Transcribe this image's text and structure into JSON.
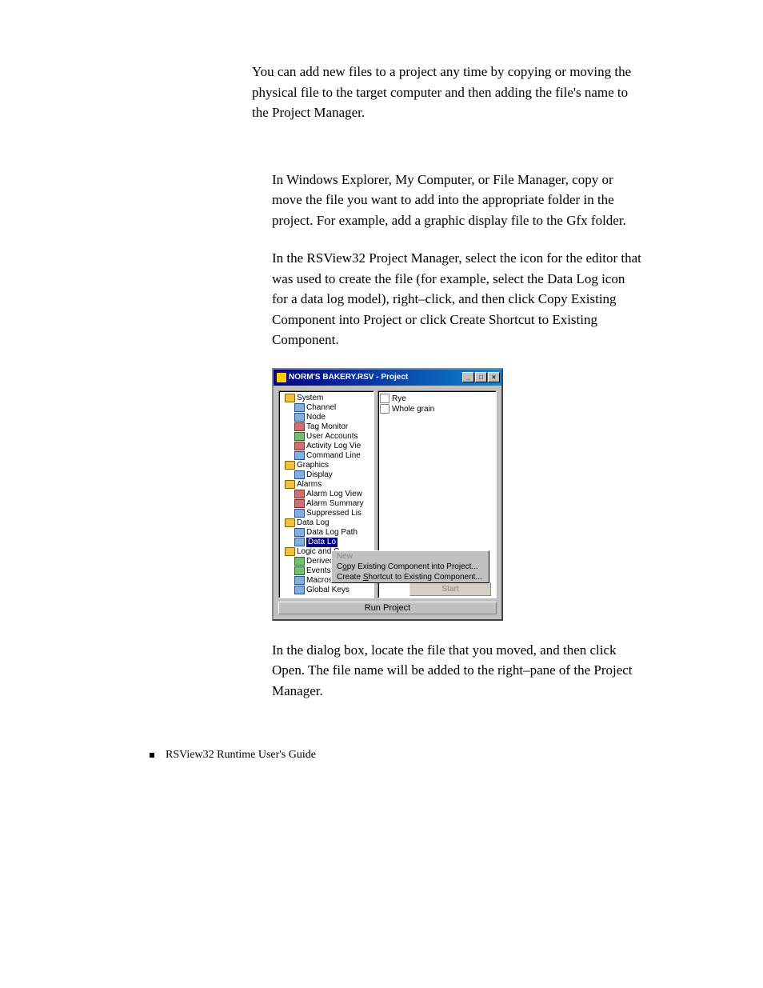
{
  "intro": "You can add new files to a project any time by copying or moving the physical file to the target computer and then adding the file's name to the Project Manager.",
  "step1": "In Windows Explorer, My Computer, or File Manager, copy or move the file you want to add into the appropriate folder in the project. For example, add a graphic display file to the Gfx folder.",
  "step2": "In the RSView32 Project Manager, select the icon for the editor that was used to create the file (for example, select the Data Log icon for a data log model), right–click, and then click Copy Existing Component into Project or click Create Shortcut to Existing Component.",
  "step3": "In the dialog box, locate the file that you moved, and then click Open. The file name will be added to the right–pane of the Project Manager.",
  "footer": "RSView32  Runtime User's Guide",
  "window": {
    "title": "NORM'S BAKERY.RSV - Project",
    "runproject": "Run Project",
    "start": "Start"
  },
  "tree": [
    {
      "level": 0,
      "icon": "folder",
      "label": "System"
    },
    {
      "level": 1,
      "icon": "item",
      "label": "Channel"
    },
    {
      "level": 1,
      "icon": "item",
      "label": "Node"
    },
    {
      "level": 1,
      "icon": "item2",
      "label": "Tag Monitor"
    },
    {
      "level": 1,
      "icon": "item3",
      "label": "User Accounts"
    },
    {
      "level": 1,
      "icon": "item2",
      "label": "Activity Log Vie"
    },
    {
      "level": 1,
      "icon": "item",
      "label": "Command Line"
    },
    {
      "level": 0,
      "icon": "folder",
      "label": "Graphics"
    },
    {
      "level": 1,
      "icon": "item",
      "label": "Display"
    },
    {
      "level": 0,
      "icon": "folder",
      "label": "Alarms"
    },
    {
      "level": 1,
      "icon": "item2",
      "label": "Alarm Log View"
    },
    {
      "level": 1,
      "icon": "item2",
      "label": "Alarm Summary"
    },
    {
      "level": 1,
      "icon": "item",
      "label": "Suppressed Lis"
    },
    {
      "level": 0,
      "icon": "folder",
      "label": "Data Log"
    },
    {
      "level": 1,
      "icon": "item",
      "label": "Data Log Path"
    },
    {
      "level": 1,
      "icon": "item",
      "label": "Data Lo",
      "selected": true
    },
    {
      "level": 0,
      "icon": "folder",
      "label": "Logic and C"
    },
    {
      "level": 1,
      "icon": "item3",
      "label": "Derivec"
    },
    {
      "level": 1,
      "icon": "item3",
      "label": "Events"
    },
    {
      "level": 1,
      "icon": "item",
      "label": "Macros"
    },
    {
      "level": 1,
      "icon": "item",
      "label": "Global Keys"
    }
  ],
  "rightlist": [
    {
      "label": "Rye"
    },
    {
      "label": "Whole grain"
    }
  ],
  "contextmenu": {
    "item1": "New",
    "item2_pre": "C",
    "item2_u": "o",
    "item2_post": "py Existing Component into Project...",
    "item3_pre": "Create ",
    "item3_u": "S",
    "item3_post": "hortcut to Existing Component..."
  }
}
